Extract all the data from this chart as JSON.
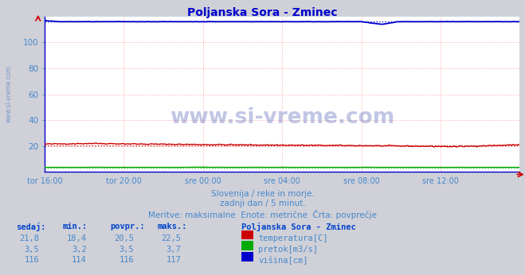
{
  "title": "Poljanska Sora - Zminec",
  "title_color": "#0000cc",
  "bg_color": "#d0d0d8",
  "plot_bg_color": "#ffffff",
  "grid_color": "#ff9999",
  "vgrid_color": "#ffcccc",
  "xlim": [
    0,
    288
  ],
  "ylim": [
    0,
    120
  ],
  "yticks": [
    20,
    40,
    60,
    80,
    100
  ],
  "xtick_labels": [
    "tor 16:00",
    "tor 20:00",
    "sre 00:00",
    "sre 04:00",
    "sre 08:00",
    "sre 12:00"
  ],
  "xtick_positions": [
    0,
    48,
    96,
    144,
    192,
    240
  ],
  "temp_avg": 20.5,
  "flow_avg": 3.5,
  "height_avg": 116.0,
  "temp_color": "#cc0000",
  "flow_color": "#00aa00",
  "height_color": "#0000cc",
  "watermark_text": "www.si-vreme.com",
  "watermark_color": "#3344aa",
  "subtitle1": "Slovenija / reke in morje.",
  "subtitle2": "zadnji dan / 5 minut.",
  "subtitle3": "Meritve: maksimalne  Enote: metrične  Črta: povprečje",
  "legend_title": "Poljanska Sora - Zminec",
  "legend_items": [
    {
      "label": "temperatura[C]",
      "color": "#cc0000"
    },
    {
      "label": "pretok[m3/s]",
      "color": "#00aa00"
    },
    {
      "label": "višina[cm]",
      "color": "#0000cc"
    }
  ],
  "col_headers": [
    "sedaj:",
    "min.:",
    "povpr.:",
    "maks.:"
  ],
  "stats_rows": [
    [
      "21,8",
      "18,4",
      "20,5",
      "22,5"
    ],
    [
      "3,5",
      "3,2",
      "3,5",
      "3,7"
    ],
    [
      "116",
      "114",
      "116",
      "117"
    ]
  ],
  "text_color": "#4488cc",
  "header_color": "#0044cc",
  "ylabel_text": "www.si-vreme.com",
  "ylabel_color": "#7799cc"
}
